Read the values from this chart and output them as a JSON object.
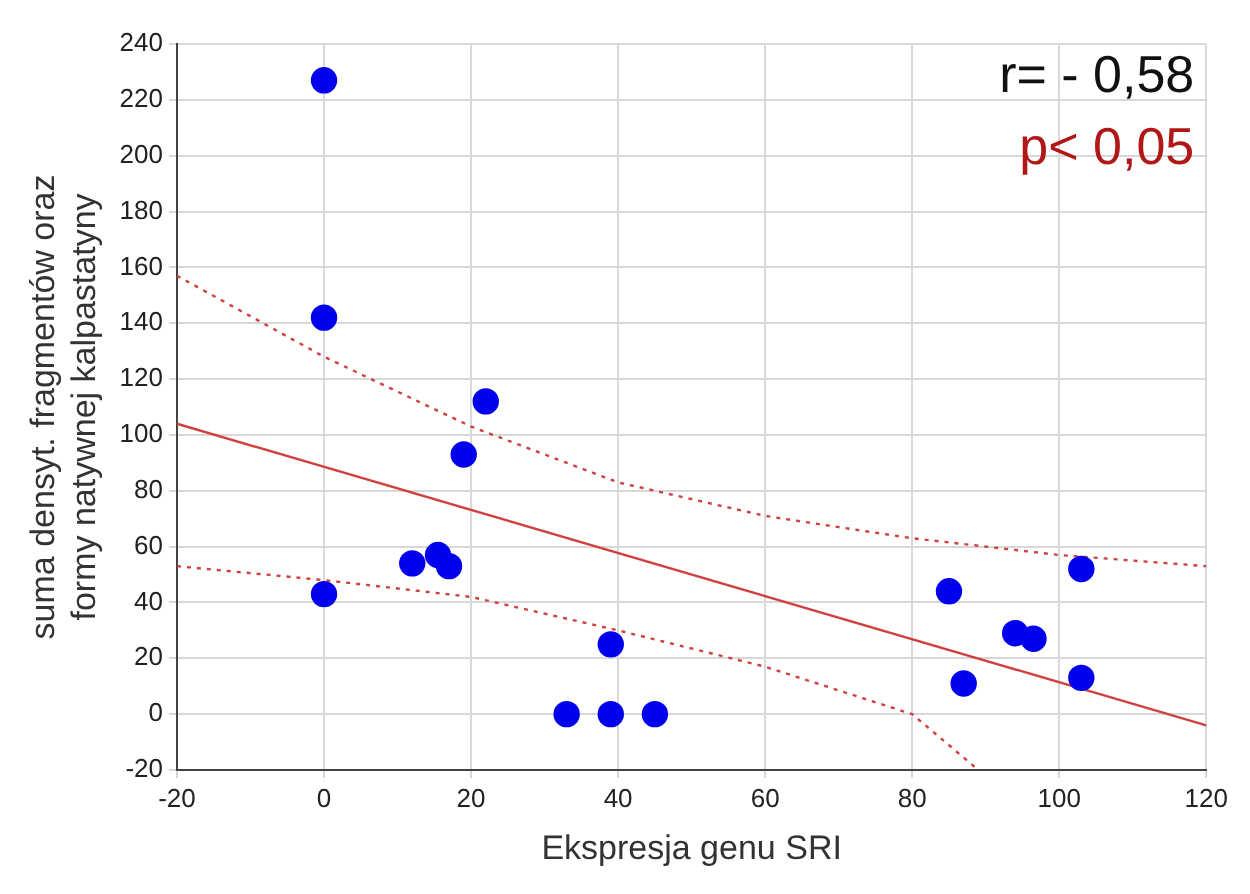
{
  "chart_data": {
    "type": "scatter",
    "xlabel": "Ekspresja genu SRI",
    "ylabel": "suma densyt. fragmentów oraz formy natywnej kalpastatyny",
    "annotations": [
      "r= - 0,58",
      "p< 0,05"
    ],
    "xlim": [
      -20,
      120
    ],
    "xticks": [
      -20,
      0,
      20,
      40,
      60,
      80,
      100,
      120
    ],
    "ylim": [
      -20,
      240
    ],
    "yticks": [
      -20,
      0,
      20,
      40,
      60,
      80,
      100,
      120,
      140,
      160,
      180,
      200,
      220,
      240
    ],
    "grid": true,
    "legend": false,
    "series": [
      {
        "type": "scatter",
        "color": "#0000ee",
        "marker": "circle",
        "x": [
          0,
          0,
          0,
          12,
          15.5,
          17,
          19,
          22,
          33,
          39,
          39,
          45,
          85,
          87,
          94,
          96.5,
          103,
          103
        ],
        "values": [
          227,
          142,
          43,
          54,
          57,
          53,
          93,
          112,
          0,
          0,
          25,
          0,
          44,
          11,
          29,
          27,
          52,
          13
        ]
      },
      {
        "type": "line",
        "color": "#d04040",
        "marker": "none",
        "line_style": "solid",
        "x": [
          -20,
          120
        ],
        "values": [
          104,
          -4
        ]
      },
      {
        "type": "line",
        "color": "#d04040",
        "marker": "none",
        "line_style": "dotted",
        "x": [
          -20,
          0,
          20,
          40,
          60,
          80,
          100,
          120
        ],
        "values": [
          157,
          128,
          103,
          83,
          71,
          63,
          57,
          53
        ]
      },
      {
        "type": "line",
        "color": "#d04040",
        "marker": "none",
        "line_style": "dotted",
        "x": [
          -20,
          0,
          20,
          40,
          60,
          80,
          89
        ],
        "values": [
          53,
          48,
          42,
          30,
          17,
          0,
          -20
        ]
      }
    ]
  }
}
